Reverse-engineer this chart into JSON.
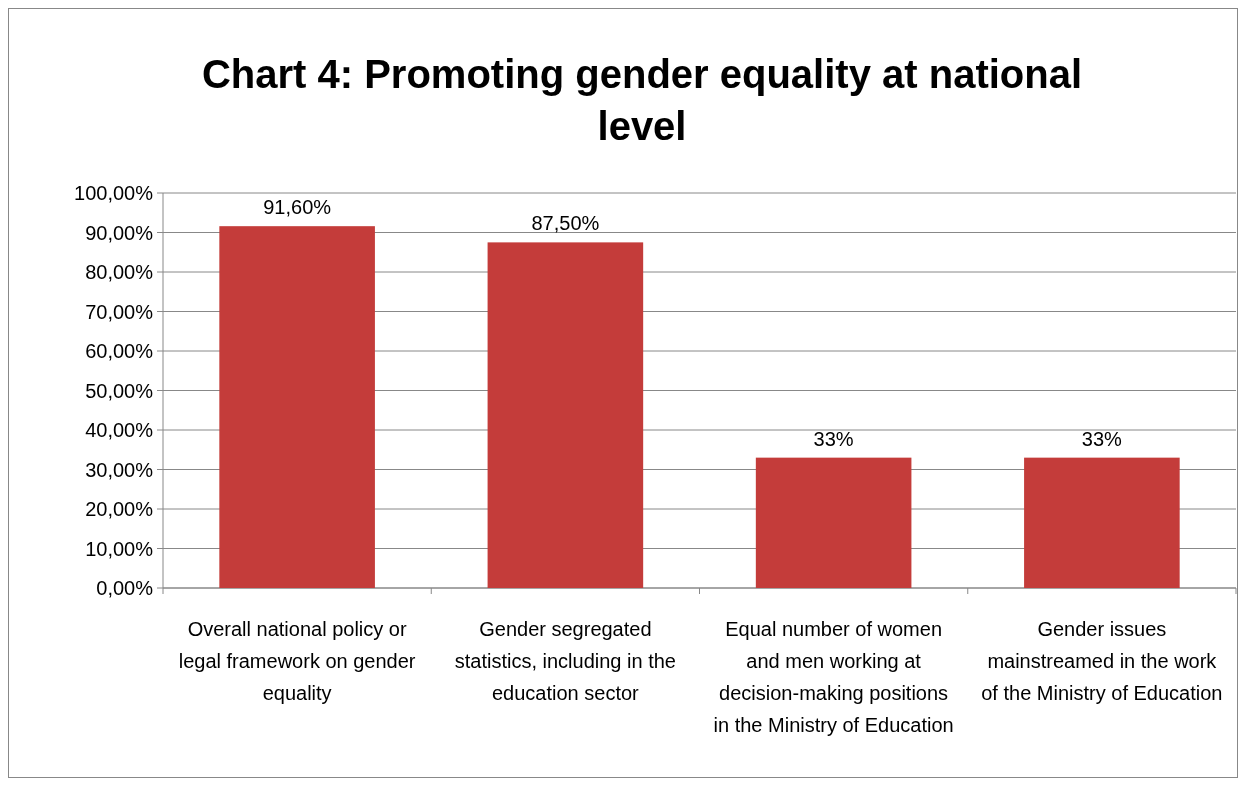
{
  "chart_data": {
    "type": "bar",
    "title": "Chart 4: Promoting gender equality at national level",
    "categories": [
      "Overall national policy or legal framework on gender equality",
      "Gender segregated statistics, including in the education sector",
      "Equal number of women and men working at decision-making positions in the Ministry of Education",
      "Gender issues mainstreamed in the work of the Ministry of Education"
    ],
    "values": [
      91.6,
      87.5,
      33,
      33
    ],
    "value_labels": [
      "91,60%",
      "87,50%",
      "33%",
      "33%"
    ],
    "color": "#c43c3a",
    "ylim": [
      0,
      100
    ],
    "yticks": [
      {
        "value": 0,
        "label": "0,00%"
      },
      {
        "value": 10,
        "label": "10,00%"
      },
      {
        "value": 20,
        "label": "20,00%"
      },
      {
        "value": 30,
        "label": "30,00%"
      },
      {
        "value": 40,
        "label": "40,00%"
      },
      {
        "value": 50,
        "label": "50,00%"
      },
      {
        "value": 60,
        "label": "60,00%"
      },
      {
        "value": 70,
        "label": "70,00%"
      },
      {
        "value": 80,
        "label": "80,00%"
      },
      {
        "value": 90,
        "label": "90,00%"
      },
      {
        "value": 100,
        "label": "100,00%"
      }
    ],
    "grid": "y"
  }
}
